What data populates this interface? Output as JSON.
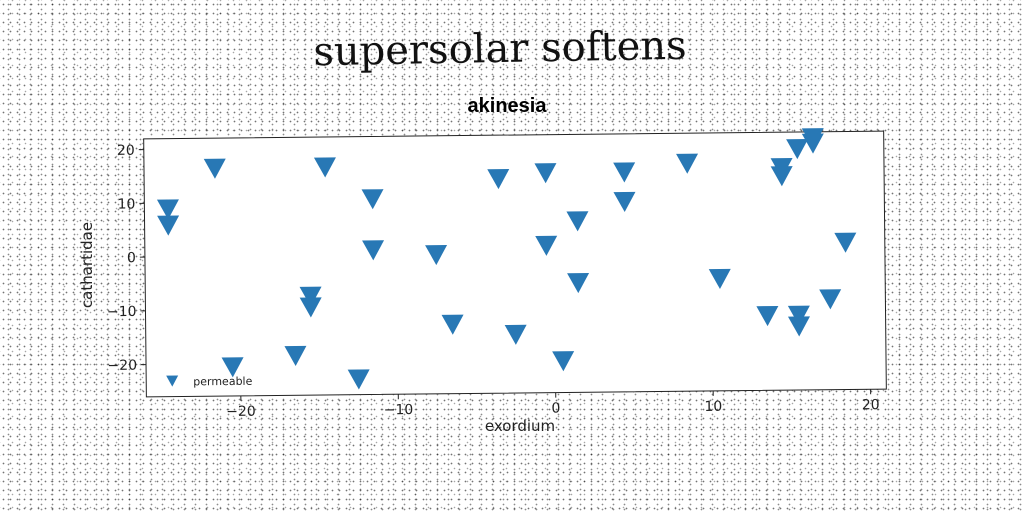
{
  "page_title": "supersolar softens",
  "chart_data": {
    "type": "scatter",
    "title": "akinesia",
    "xlabel": "exordium",
    "ylabel": "cathartidae",
    "xlim": [
      -26,
      21
    ],
    "ylim": [
      -26,
      22
    ],
    "xticks": [
      -20,
      -10,
      0,
      10,
      20
    ],
    "yticks": [
      -20,
      -10,
      0,
      10,
      20
    ],
    "xtick_labels": [
      "−20",
      "−10",
      "0",
      "10",
      "20"
    ],
    "ytick_labels": [
      "−20",
      "−10",
      "0",
      "10",
      "20"
    ],
    "marker": "triangle-down",
    "color": "#2878b5",
    "grid": false,
    "legend_position": "lower-left",
    "series": [
      {
        "name": "permeable",
        "points": [
          {
            "x": -24.5,
            "y": 9
          },
          {
            "x": -24.5,
            "y": 6
          },
          {
            "x": -21.5,
            "y": 16.5
          },
          {
            "x": -14.5,
            "y": 16.5
          },
          {
            "x": -11.5,
            "y": 10.5
          },
          {
            "x": -11.5,
            "y": 1
          },
          {
            "x": -7.5,
            "y": 0
          },
          {
            "x": -6.5,
            "y": -13
          },
          {
            "x": -3.5,
            "y": 14
          },
          {
            "x": -2.5,
            "y": -15
          },
          {
            "x": -0.5,
            "y": 15
          },
          {
            "x": -0.5,
            "y": 1.5
          },
          {
            "x": 1.5,
            "y": 6
          },
          {
            "x": 1.5,
            "y": -5.5
          },
          {
            "x": 0.5,
            "y": -20
          },
          {
            "x": 4.5,
            "y": 15
          },
          {
            "x": 4.5,
            "y": 9.5
          },
          {
            "x": 8.5,
            "y": 16.5
          },
          {
            "x": 10.5,
            "y": -5
          },
          {
            "x": 13.5,
            "y": -12
          },
          {
            "x": 14.5,
            "y": 15.5
          },
          {
            "x": 14.5,
            "y": 14
          },
          {
            "x": 15.5,
            "y": 19
          },
          {
            "x": 15.5,
            "y": -12
          },
          {
            "x": 15.5,
            "y": -14
          },
          {
            "x": 16.5,
            "y": 21
          },
          {
            "x": 16.5,
            "y": 20
          },
          {
            "x": 17.5,
            "y": -9
          },
          {
            "x": 18.5,
            "y": 1.5
          },
          {
            "x": -15.5,
            "y": -7.5
          },
          {
            "x": -15.5,
            "y": -9.5
          },
          {
            "x": -16.5,
            "y": -18.5
          },
          {
            "x": -20.5,
            "y": -20.5
          },
          {
            "x": -12.5,
            "y": -23
          }
        ]
      }
    ]
  }
}
